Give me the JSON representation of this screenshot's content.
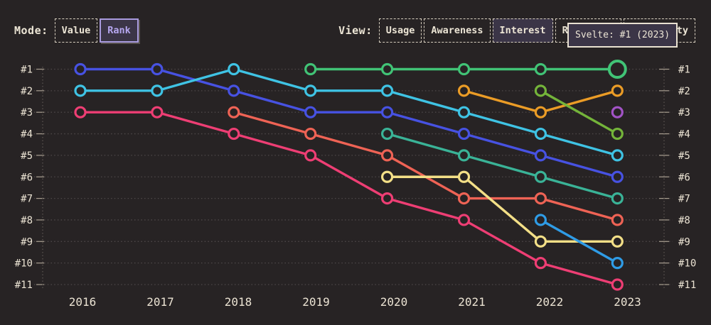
{
  "colors": {
    "background": "#272324",
    "text_cream": "#ece5d5",
    "gridline": "#4e4849",
    "axis_tick": "#a89e90",
    "panel_fill": "#3b3547",
    "accent_purple_border": "#a99bdf",
    "accent_purple_text": "#b6a7f0",
    "tooltip_border": "#e9e1d1"
  },
  "controls": {
    "mode": {
      "label": "Mode:",
      "options": [
        {
          "label": "Value",
          "selected": false
        },
        {
          "label": "Rank",
          "selected": true
        }
      ]
    },
    "view": {
      "label": "View:",
      "options": [
        {
          "label": "Usage",
          "selected": false
        },
        {
          "label": "Awareness",
          "selected": false
        },
        {
          "label": "Interest",
          "selected": true
        },
        {
          "label": "Retention",
          "selected": false,
          "obscured_by_tooltip": true
        },
        {
          "label": "Positivity",
          "selected": false,
          "partially_obscured_by_tooltip": true
        }
      ]
    }
  },
  "tooltip": {
    "text": "Svelte: #1 (2023)"
  },
  "chart_data": {
    "type": "line",
    "subtype": "bump-rank-chart",
    "x_labels": [
      "2016",
      "2017",
      "2018",
      "2019",
      "2020",
      "2021",
      "2022",
      "2023"
    ],
    "rank_labels": [
      "#1",
      "#2",
      "#3",
      "#4",
      "#5",
      "#6",
      "#7",
      "#8",
      "#9",
      "#10",
      "#11"
    ],
    "y_axis": {
      "type": "rank",
      "min": 1,
      "max": 11,
      "inverted": true,
      "shown_both_sides": true
    },
    "grid": "dotted-horizontal",
    "legend": "none",
    "point_style": "hollow-ring",
    "series": [
      {
        "name": "royal-blue",
        "color": "#4752e2",
        "ranks_by_year": {
          "2016": 1,
          "2017": 1,
          "2018": 2,
          "2019": 3,
          "2020": 3,
          "2021": 4,
          "2022": 5,
          "2023": 6
        }
      },
      {
        "name": "cyan",
        "color": "#3fc3e4",
        "ranks_by_year": {
          "2016": 2,
          "2017": 2,
          "2018": 1,
          "2019": 2,
          "2020": 2,
          "2021": 3,
          "2022": 4,
          "2023": 5
        }
      },
      {
        "name": "pink",
        "color": "#ee3e74",
        "ranks_by_year": {
          "2016": 3,
          "2017": 3,
          "2018": 4,
          "2019": 5,
          "2020": 7,
          "2021": 8,
          "2022": 10,
          "2023": 11
        }
      },
      {
        "name": "salmon",
        "color": "#ef6355",
        "ranks_by_year": {
          "2018": 3,
          "2019": 4,
          "2020": 5,
          "2021": 7,
          "2022": 7,
          "2023": 8
        }
      },
      {
        "name": "teal",
        "color": "#3ab397",
        "ranks_by_year": {
          "2020": 4,
          "2021": 5,
          "2022": 6,
          "2023": 7
        }
      },
      {
        "name": "pale-yellow",
        "color": "#f3df87",
        "ranks_by_year": {
          "2020": 6,
          "2021": 6,
          "2022": 9,
          "2023": 9
        }
      },
      {
        "name": "amber",
        "color": "#eb9c26",
        "ranks_by_year": {
          "2021": 2,
          "2022": 3,
          "2023": 2
        }
      },
      {
        "name": "apple-green",
        "color": "#74b43a",
        "ranks_by_year": {
          "2022": 2,
          "2023": 4
        }
      },
      {
        "name": "azure",
        "color": "#2f9ce6",
        "ranks_by_year": {
          "2022": 8,
          "2023": 10
        }
      },
      {
        "name": "violet",
        "color": "#a253c6",
        "ranks_by_year": {
          "2023": 3
        }
      },
      {
        "name": "Svelte",
        "color": "#41c376",
        "ranks_by_year": {
          "2019": 1,
          "2020": 1,
          "2021": 1,
          "2022": 1,
          "2023": 1
        }
      }
    ],
    "highlight": {
      "series": "Svelte",
      "year": "2023",
      "rank": 1
    }
  }
}
